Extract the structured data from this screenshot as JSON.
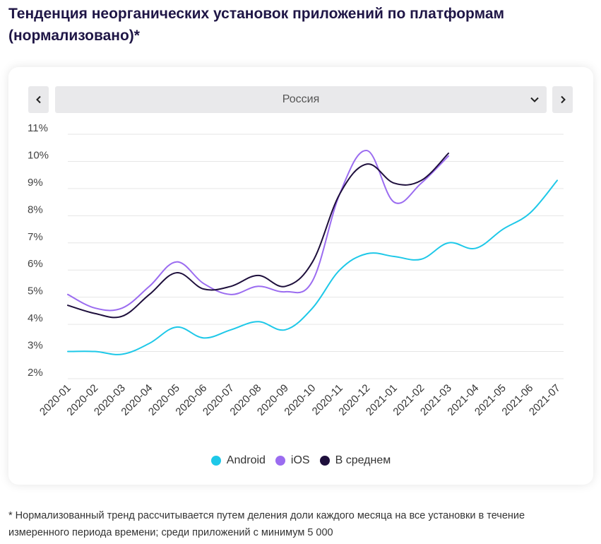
{
  "title": "Тенденция неорганических установок приложений по платформам (нормализовано)*",
  "selector": {
    "value": "Россия"
  },
  "footnote": "* Нормализованный тренд рассчитывается путем деления доли каждого месяца на все установки в течение измеренного периода времени; среди приложений с минимум 5 000",
  "colors": {
    "android": "#1ec8e8",
    "ios": "#9b6cf0",
    "average": "#1e0f3c",
    "grid": "#e6e6e6"
  },
  "chart_data": {
    "type": "line",
    "categories": [
      "2020-01",
      "2020-02",
      "2020-03",
      "2020-04",
      "2020-05",
      "2020-06",
      "2020-07",
      "2020-08",
      "2020-09",
      "2020-10",
      "2020-11",
      "2020-12",
      "2021-01",
      "2021-02",
      "2021-03",
      "2021-04",
      "2021-05",
      "2021-06",
      "2021-07"
    ],
    "y_ticks": [
      "2%",
      "3%",
      "4%",
      "5%",
      "6%",
      "7%",
      "8%",
      "9%",
      "10%",
      "11%"
    ],
    "ylim": [
      2,
      11
    ],
    "grid": true,
    "legend_position": "bottom",
    "series": [
      {
        "name": "Android",
        "color_key": "android",
        "values": [
          3.0,
          3.0,
          2.9,
          3.3,
          3.9,
          3.5,
          3.8,
          4.1,
          3.8,
          4.6,
          6.0,
          6.6,
          6.5,
          6.4,
          7.0,
          6.8,
          7.5,
          8.1,
          9.3
        ]
      },
      {
        "name": "iOS",
        "color_key": "ios",
        "values": [
          5.1,
          4.6,
          4.6,
          5.4,
          6.3,
          5.5,
          5.1,
          5.4,
          5.2,
          5.6,
          8.8,
          10.4,
          8.5,
          9.2,
          10.2,
          null,
          null,
          null,
          null
        ]
      },
      {
        "name": "В среднем",
        "color_key": "average",
        "values": [
          4.7,
          4.4,
          4.3,
          5.1,
          5.9,
          5.3,
          5.4,
          5.8,
          5.4,
          6.3,
          8.8,
          9.9,
          9.2,
          9.3,
          10.3,
          null,
          null,
          null,
          null
        ]
      }
    ]
  }
}
